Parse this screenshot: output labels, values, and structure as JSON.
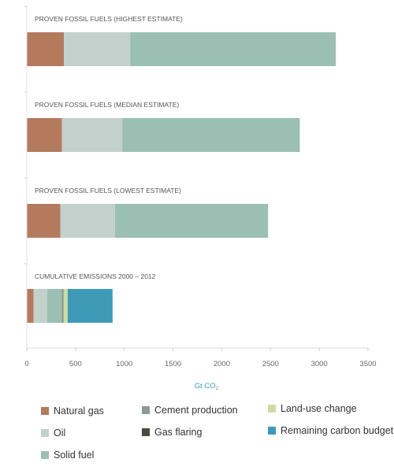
{
  "chart_data": {
    "type": "bar",
    "orientation": "horizontal",
    "stacked": true,
    "categories": [
      "PROVEN FOSSIL FUELS (HIGHEST ESTIMATE)",
      "PROVEN FOSSIL FUELS (MEDIAN ESTIMATE)",
      "PROVEN FOSSIL FUELS (LOWEST ESTIMATE)",
      "CUMULATIVE EMISSIONS 2000 – 2012"
    ],
    "series": [
      {
        "name": "Natural gas",
        "color": "#b47a5e",
        "values": [
          380,
          360,
          345,
          70
        ]
      },
      {
        "name": "Oil",
        "color": "#c3d1cc",
        "values": [
          680,
          620,
          560,
          140
        ]
      },
      {
        "name": "Solid fuel",
        "color": "#9bbfb2",
        "values": [
          2110,
          1820,
          1570,
          150
        ]
      },
      {
        "name": "Cement production",
        "color": "#8d9994",
        "values": [
          0,
          0,
          0,
          10
        ]
      },
      {
        "name": "Gas flaring",
        "color": "#4a4a44",
        "values": [
          0,
          0,
          0,
          5
        ]
      },
      {
        "name": "Land-use change",
        "color": "#c9dda4",
        "values": [
          0,
          0,
          0,
          45
        ]
      },
      {
        "name": "Remaining carbon budget",
        "color": "#3f9ab8",
        "values": [
          0,
          0,
          0,
          460
        ]
      }
    ],
    "xlabel": "Gt CO",
    "xlabel_subscript": "2",
    "xlim": [
      0,
      3500
    ],
    "xticks": [
      0,
      500,
      1000,
      1500,
      2000,
      2500,
      3000,
      3500
    ],
    "grid": false,
    "legend_position": "bottom"
  }
}
